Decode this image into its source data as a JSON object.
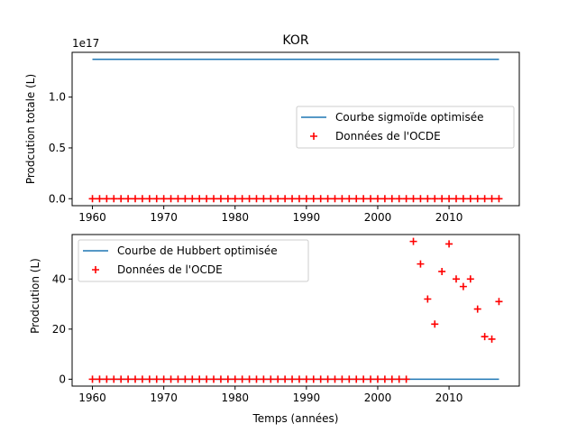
{
  "chart_data": [
    {
      "type": "line",
      "title": "KOR",
      "xlabel": "",
      "ylabel": "Prodcution totale (L)",
      "offset_text": "1e17",
      "xlim": [
        1957.15,
        2019.85
      ],
      "ylim": [
        -0.0686,
        1.4407
      ],
      "xticks": [
        1960,
        1970,
        1980,
        1990,
        2000,
        2010
      ],
      "xtick_labels": [
        "1960",
        "1970",
        "1980",
        "1990",
        "2000",
        "2010"
      ],
      "yticks": [
        0.0,
        0.5,
        1.0
      ],
      "ytick_labels": [
        "0.0",
        "0.5",
        "1.0"
      ],
      "legend_position": "center-right",
      "series": [
        {
          "name": "Courbe sigmoïde optimisée",
          "kind": "line",
          "color": "#1f77b4",
          "x": [
            1960,
            2017
          ],
          "y": [
            1.372,
            1.372
          ]
        },
        {
          "name": "Données de l'OCDE",
          "kind": "scatter",
          "marker": "plus",
          "color": "#ff0000",
          "x": [
            1960,
            1961,
            1962,
            1963,
            1964,
            1965,
            1966,
            1967,
            1968,
            1969,
            1970,
            1971,
            1972,
            1973,
            1974,
            1975,
            1976,
            1977,
            1978,
            1979,
            1980,
            1981,
            1982,
            1983,
            1984,
            1985,
            1986,
            1987,
            1988,
            1989,
            1990,
            1991,
            1992,
            1993,
            1994,
            1995,
            1996,
            1997,
            1998,
            1999,
            2000,
            2001,
            2002,
            2003,
            2004,
            2005,
            2006,
            2007,
            2008,
            2009,
            2010,
            2011,
            2012,
            2013,
            2014,
            2015,
            2016,
            2017
          ],
          "y": [
            0,
            0,
            0,
            0,
            0,
            0,
            0,
            0,
            0,
            0,
            0,
            0,
            0,
            0,
            0,
            0,
            0,
            0,
            0,
            0,
            0,
            0,
            0,
            0,
            0,
            0,
            0,
            0,
            0,
            0,
            0,
            0,
            0,
            0,
            0,
            0,
            0,
            0,
            0,
            0,
            0,
            0,
            0,
            0,
            0,
            0,
            0,
            0,
            0,
            0,
            0,
            0,
            0,
            0,
            0,
            0,
            0,
            0
          ]
        }
      ]
    },
    {
      "type": "line",
      "title": "",
      "xlabel": "Temps (années)",
      "ylabel": "Prodcution (L)",
      "xlim": [
        1957.15,
        2019.85
      ],
      "ylim": [
        -2.75,
        57.75
      ],
      "xticks": [
        1960,
        1970,
        1980,
        1990,
        2000,
        2010
      ],
      "xtick_labels": [
        "1960",
        "1970",
        "1980",
        "1990",
        "2000",
        "2010"
      ],
      "yticks": [
        0,
        20,
        40
      ],
      "ytick_labels": [
        "0",
        "20",
        "40"
      ],
      "legend_position": "upper-left",
      "series": [
        {
          "name": "Courbe de Hubbert optimisée",
          "kind": "line",
          "color": "#1f77b4",
          "x": [
            1960,
            2017
          ],
          "y": [
            0,
            0
          ]
        },
        {
          "name": "Données de l'OCDE",
          "kind": "scatter",
          "marker": "plus",
          "color": "#ff0000",
          "x": [
            1960,
            1961,
            1962,
            1963,
            1964,
            1965,
            1966,
            1967,
            1968,
            1969,
            1970,
            1971,
            1972,
            1973,
            1974,
            1975,
            1976,
            1977,
            1978,
            1979,
            1980,
            1981,
            1982,
            1983,
            1984,
            1985,
            1986,
            1987,
            1988,
            1989,
            1990,
            1991,
            1992,
            1993,
            1994,
            1995,
            1996,
            1997,
            1998,
            1999,
            2000,
            2001,
            2002,
            2003,
            2004,
            2005,
            2006,
            2007,
            2008,
            2009,
            2010,
            2011,
            2012,
            2013,
            2014,
            2015,
            2016,
            2017
          ],
          "y": [
            0,
            0,
            0,
            0,
            0,
            0,
            0,
            0,
            0,
            0,
            0,
            0,
            0,
            0,
            0,
            0,
            0,
            0,
            0,
            0,
            0,
            0,
            0,
            0,
            0,
            0,
            0,
            0,
            0,
            0,
            0,
            0,
            0,
            0,
            0,
            0,
            0,
            0,
            0,
            0,
            0,
            0,
            0,
            0,
            0,
            55,
            46,
            32,
            22,
            43,
            54,
            40,
            37,
            40,
            28,
            17,
            16,
            31
          ]
        }
      ]
    }
  ]
}
